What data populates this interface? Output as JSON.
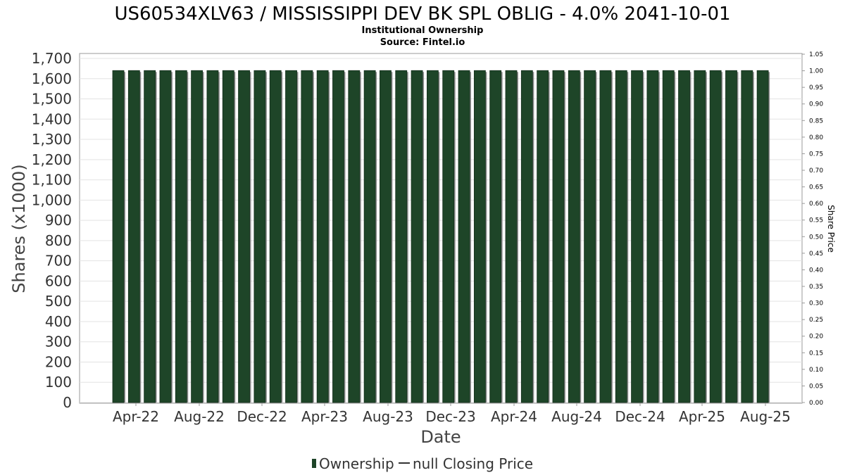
{
  "chart_data": {
    "type": "bar",
    "title": "US60534XLV63 / MISSISSIPPI DEV BK SPL OBLIG - 4.0% 2041-10-01",
    "subtitle_lines": [
      "Institutional Ownership",
      "Source: Fintel.io"
    ],
    "xlabel": "Date",
    "ylabel": "Shares (x1000)",
    "y2label": "Share Price",
    "ylim": [
      0,
      1700
    ],
    "y_ticks": [
      0,
      100,
      200,
      300,
      400,
      500,
      600,
      700,
      800,
      900,
      1000,
      1100,
      1200,
      1300,
      1400,
      1500,
      1600,
      1700
    ],
    "y_tick_labels": [
      "0",
      "100",
      "200",
      "300",
      "400",
      "500",
      "600",
      "700",
      "800",
      "900",
      "1,000",
      "1,100",
      "1,200",
      "1,300",
      "1,400",
      "1,500",
      "1,600",
      "1,700"
    ],
    "y2lim": [
      0,
      1.05
    ],
    "y2_tick_labels": [
      "0.00",
      "0.05",
      "0.10",
      "0.15",
      "0.20",
      "0.25",
      "0.30",
      "0.35",
      "0.40",
      "0.45",
      "0.50",
      "0.55",
      "0.60",
      "0.65",
      "0.70",
      "0.75",
      "0.80",
      "0.85",
      "0.90",
      "0.95",
      "1.00",
      "1.05"
    ],
    "x_tick_labels": [
      "Apr-22",
      "Aug-22",
      "Dec-22",
      "Apr-23",
      "Aug-23",
      "Dec-23",
      "Apr-24",
      "Aug-24",
      "Dec-24",
      "Apr-25",
      "Aug-25"
    ],
    "grid": true,
    "legend_position": "bottom-center",
    "series": [
      {
        "name": "Ownership",
        "color": "#1e4528",
        "values": [
          1640,
          1640,
          1640,
          1640,
          1640,
          1640,
          1640,
          1640,
          1640,
          1640,
          1640,
          1640,
          1640,
          1640,
          1640,
          1640,
          1640,
          1640,
          1640,
          1640,
          1640,
          1640,
          1640,
          1640,
          1640,
          1640,
          1640,
          1640,
          1640,
          1640,
          1640,
          1640,
          1640,
          1640,
          1640,
          1640,
          1640,
          1640,
          1640,
          1640,
          1640,
          1640
        ]
      }
    ],
    "legend": [
      {
        "label": "Ownership",
        "color": "#1e4528"
      },
      {
        "label": "null Closing Price",
        "color": "#333333"
      }
    ]
  }
}
